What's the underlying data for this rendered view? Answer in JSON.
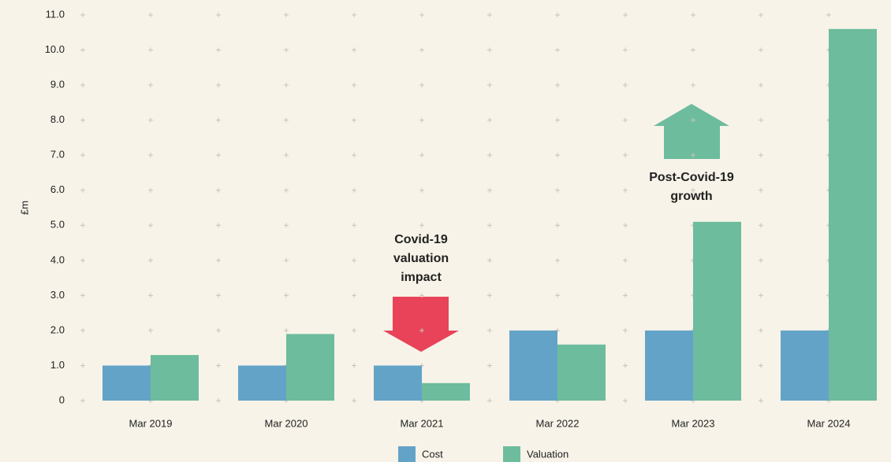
{
  "chart_data": {
    "type": "bar",
    "y_label": "£m",
    "categories": [
      "Mar 2019",
      "Mar 2020",
      "Mar 2021",
      "Mar 2022",
      "Mar 2023",
      "Mar 2024"
    ],
    "series": [
      {
        "name": "Cost",
        "color": "#64a3c8",
        "values": [
          1.0,
          1.0,
          1.0,
          2.0,
          2.0,
          2.0
        ]
      },
      {
        "name": "Valuation",
        "color": "#6dbc9e",
        "values": [
          1.3,
          1.9,
          0.5,
          1.6,
          5.1,
          10.6
        ]
      }
    ],
    "ylim": [
      0,
      11
    ],
    "yticks": [
      0,
      {
        "value": 1,
        "label": "1.0"
      },
      {
        "value": 2,
        "label": "2.0"
      },
      {
        "value": 3,
        "label": "3.0"
      },
      {
        "value": 4,
        "label": "4.0"
      },
      {
        "value": 5,
        "label": "5.0"
      },
      {
        "value": 6,
        "label": "6.0"
      },
      {
        "value": 7,
        "label": "7.0"
      },
      {
        "value": 8,
        "label": "8.0"
      },
      {
        "value": 9,
        "label": "9.0"
      },
      {
        "value": 10,
        "label": "10.0"
      },
      {
        "value": 11,
        "label": "11.0"
      }
    ],
    "grid": true,
    "legend": "bottom",
    "annotations": [
      {
        "lines": [
          "Covid-19",
          "valuation",
          "impact"
        ],
        "color": "#e84359"
      },
      {
        "lines": [
          "Post-Covid-19",
          "growth"
        ],
        "color": "#6dbc9e"
      }
    ]
  }
}
